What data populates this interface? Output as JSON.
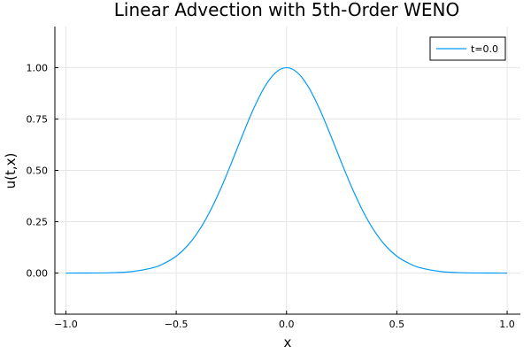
{
  "chart_data": {
    "type": "line",
    "title": "Linear Advection with 5th-Order WENO",
    "xlabel": "x",
    "ylabel": "u(t,x)",
    "xlim": [
      -1.05,
      1.06
    ],
    "ylim": [
      -0.2,
      1.2
    ],
    "xticks": [
      -1.0,
      -0.5,
      0.0,
      0.5,
      1.0
    ],
    "xtick_labels": [
      "-1.0",
      "-0.5",
      "0.0",
      "0.5",
      "1.0"
    ],
    "yticks": [
      0.0,
      0.25,
      0.5,
      0.75,
      1.0
    ],
    "ytick_labels": [
      "0.00",
      "0.25",
      "0.50",
      "0.75",
      "1.00"
    ],
    "grid": true,
    "legend_position": "top-right",
    "series": [
      {
        "name": "t=0.0",
        "color": "#009AFA",
        "x": [
          -1.0,
          -0.9,
          -0.8,
          -0.7,
          -0.6,
          -0.55,
          -0.5,
          -0.45,
          -0.4,
          -0.35,
          -0.3,
          -0.25,
          -0.2,
          -0.15,
          -0.1,
          -0.05,
          0.0,
          0.05,
          0.1,
          0.15,
          0.2,
          0.25,
          0.3,
          0.35,
          0.4,
          0.45,
          0.5,
          0.55,
          0.6,
          0.7,
          0.8,
          0.9,
          1.0
        ],
        "y": [
          0.0,
          0.0004,
          0.0017,
          0.0074,
          0.0273,
          0.05,
          0.0821,
          0.1319,
          0.2019,
          0.2938,
          0.4066,
          0.5353,
          0.6703,
          0.7981,
          0.9048,
          0.9753,
          1.0,
          0.9753,
          0.9048,
          0.7981,
          0.6703,
          0.5353,
          0.4066,
          0.2938,
          0.2019,
          0.1319,
          0.0821,
          0.05,
          0.0273,
          0.0074,
          0.0017,
          0.0004,
          0.0
        ]
      }
    ]
  }
}
